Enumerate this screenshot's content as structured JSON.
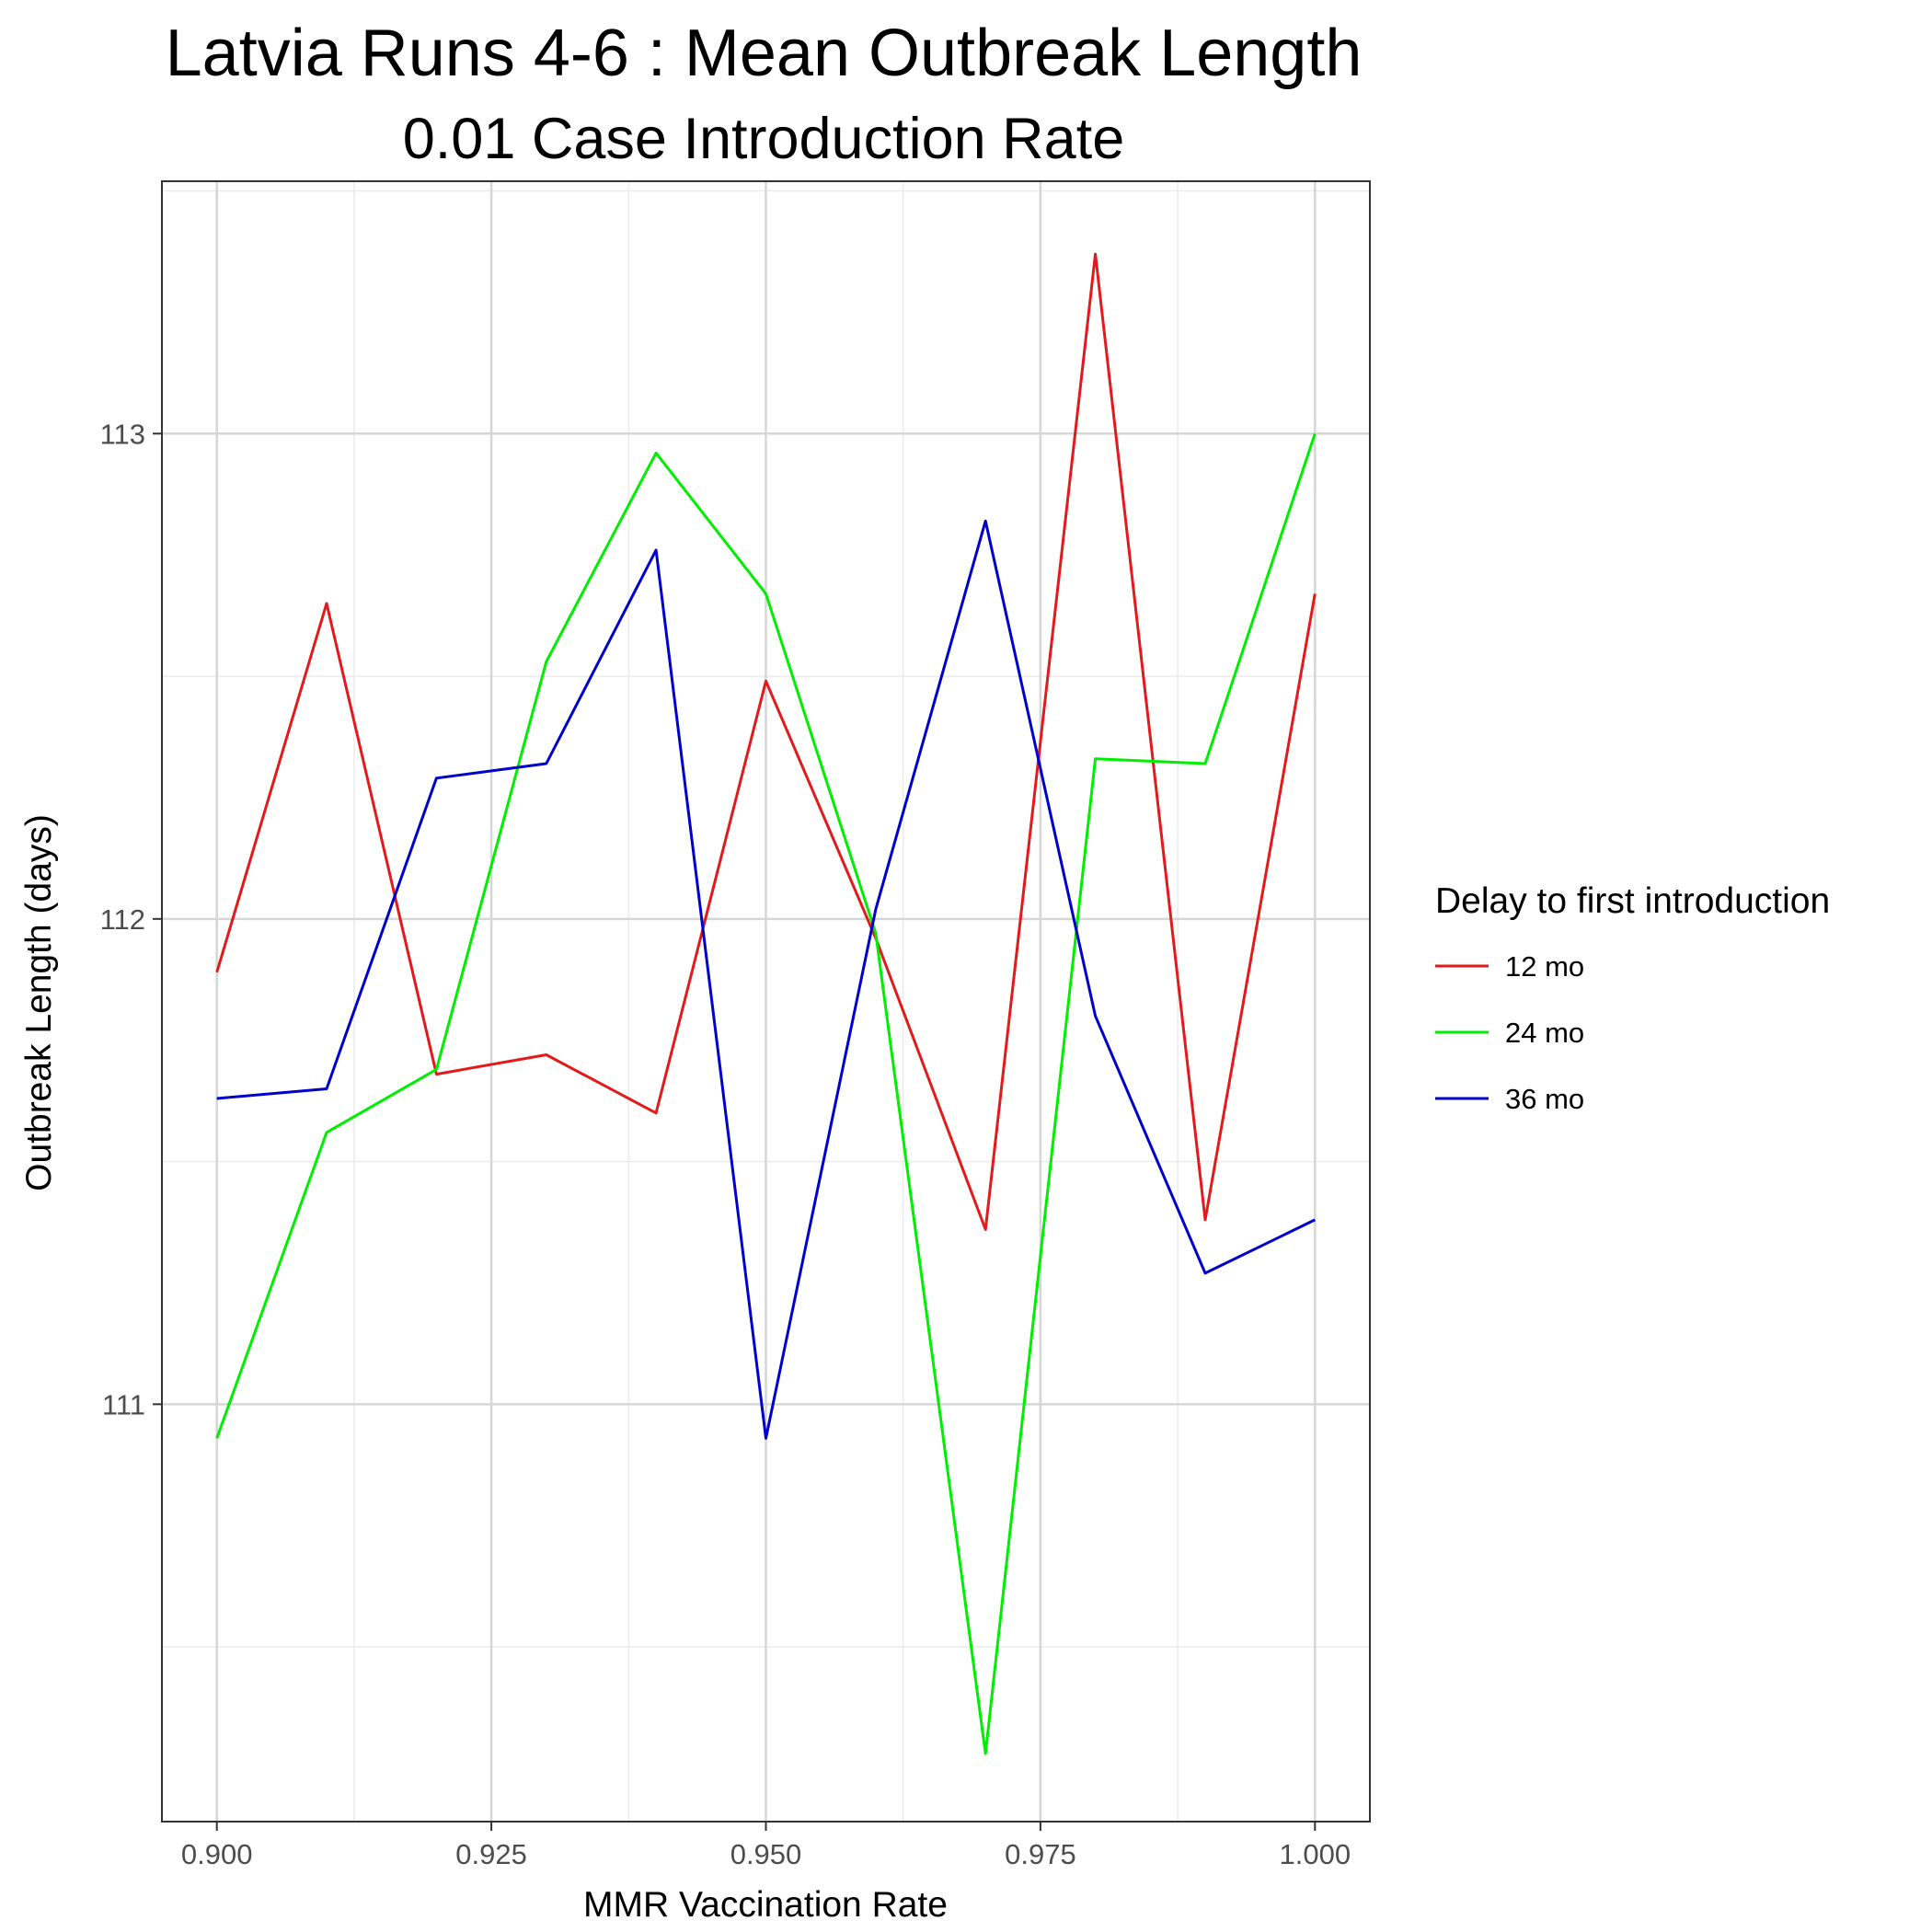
{
  "chart_data": {
    "type": "line",
    "title": "Latvia Runs 4-6 : Mean Outbreak Length",
    "subtitle": "0.01 Case Introduction Rate",
    "xlabel": "MMR Vaccination Rate",
    "ylabel": "Outbreak Length (days)",
    "xlim": [
      0.895,
      1.005
    ],
    "ylim": [
      110.14,
      113.52
    ],
    "x_ticks": [
      0.9,
      0.925,
      0.95,
      0.975,
      1.0
    ],
    "x_tick_labels": [
      "0.900",
      "0.925",
      "0.950",
      "0.975",
      "1.000"
    ],
    "y_ticks": [
      111,
      112,
      113
    ],
    "y_tick_labels": [
      "111",
      "112",
      "113"
    ],
    "grid": true,
    "legend": {
      "title": "Delay to first introduction",
      "position": "right"
    },
    "x": [
      0.9,
      0.91,
      0.92,
      0.93,
      0.94,
      0.95,
      0.96,
      0.97,
      0.98,
      0.99,
      1.0
    ],
    "series": [
      {
        "name": "12 mo",
        "color": "#e31a1c",
        "values": [
          111.89,
          112.65,
          111.68,
          111.72,
          111.6,
          112.49,
          111.96,
          111.36,
          113.37,
          111.38,
          112.67
        ]
      },
      {
        "name": "24 mo",
        "color": "#00ee00",
        "values": [
          110.93,
          111.56,
          111.69,
          112.53,
          112.96,
          112.67,
          111.97,
          110.28,
          112.33,
          112.32,
          113.0
        ]
      },
      {
        "name": "36 mo",
        "color": "#0000cc",
        "values": [
          111.63,
          111.65,
          112.29,
          112.32,
          112.76,
          110.93,
          112.02,
          112.82,
          111.8,
          111.27,
          111.38
        ]
      }
    ]
  }
}
